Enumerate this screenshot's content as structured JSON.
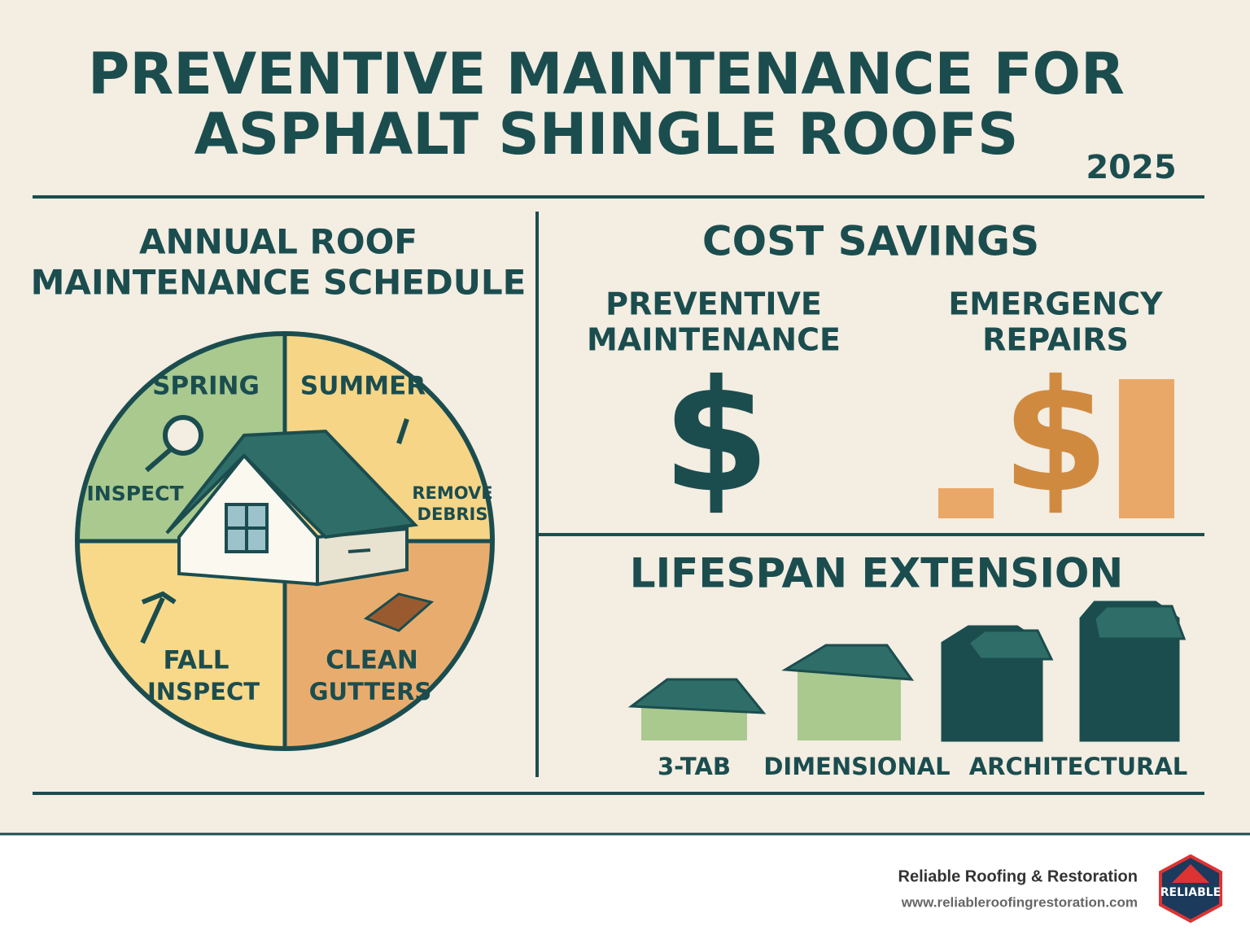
{
  "header": {
    "title_line1": "PREVENTIVE MAINTENANCE FOR",
    "title_line2": "ASPHALT SHINGLE ROOFS",
    "year": "2025"
  },
  "schedule": {
    "title_line1": "ANNUAL ROOF",
    "title_line2": "MAINTENANCE SCHEDULE",
    "quadrants": [
      {
        "name": "SPRING",
        "task": [
          "INSPECT"
        ]
      },
      {
        "name": "SUMMER",
        "task": [
          "REMOVE",
          "DEBRIS"
        ]
      },
      {
        "name": "FALL",
        "task": [
          "INSPECT"
        ]
      },
      {
        "task": [
          "CLEAN",
          "GUTTERS"
        ]
      }
    ]
  },
  "cost": {
    "title": "COST SAVINGS",
    "columns": [
      {
        "label": [
          "PREVENTIVE",
          "MAINTENANCE"
        ],
        "symbol": "$"
      },
      {
        "label": [
          "EMERGENCY",
          "REPAIRS"
        ],
        "symbol": "$"
      }
    ]
  },
  "lifespan": {
    "title": "LIFESPAN EXTENSION",
    "types": [
      "3-TAB",
      "DIMENSIONAL",
      "ARCHITECTURAL"
    ]
  },
  "footer": {
    "company": "Reliable Roofing & Restoration",
    "url": "www.reliableroofingrestoration.com",
    "logo": "RELIABLE"
  }
}
